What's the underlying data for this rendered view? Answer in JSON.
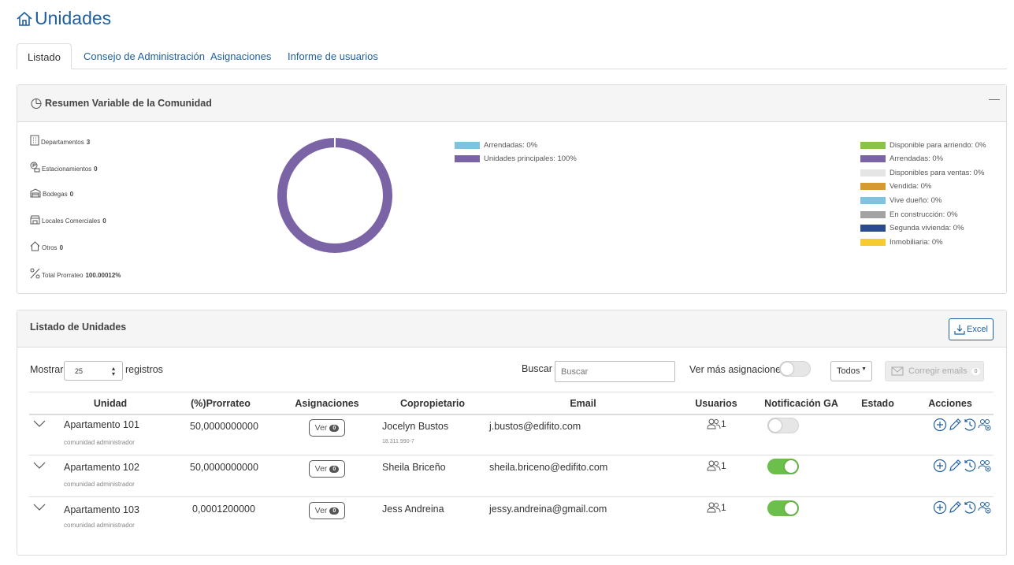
{
  "page": {
    "title": "Unidades"
  },
  "tabs": [
    "Listado",
    "Consejo de Administración",
    "Asignaciones",
    "Informe de usuarios"
  ],
  "summary": {
    "title": "Resumen Variable de la Comunidad",
    "collapse_label": "—",
    "stats": [
      {
        "label": "Departamentos",
        "value": "3",
        "icon": "building-icon"
      },
      {
        "label": "Estacionamientos",
        "value": "0",
        "icon": "parking-icon"
      },
      {
        "label": "Bodegas",
        "value": "0",
        "icon": "storage-icon"
      },
      {
        "label": "Locales Comerciales",
        "value": "0",
        "icon": "store-icon"
      },
      {
        "label": "Otros",
        "value": "0",
        "icon": "home-icon"
      },
      {
        "label": "Total Prorrateo",
        "value": "100.00012%",
        "icon": "percent-icon"
      }
    ],
    "donut": {
      "color": "#7b64a6",
      "value_percent": 100
    },
    "legend_left": [
      {
        "label": "Arrendadas: 0%",
        "color": "#7fc3e0"
      },
      {
        "label": "Unidades principales: 100%",
        "color": "#7b64a6"
      }
    ],
    "legend_right": [
      {
        "label": "Disponible para arriendo: 0%",
        "color": "#8bc34a"
      },
      {
        "label": "Arrendadas: 0%",
        "color": "#7b64a6"
      },
      {
        "label": "Disponibles para ventas: 0%",
        "color": "#e5e5e5"
      },
      {
        "label": "Vendida: 0%",
        "color": "#d69a32"
      },
      {
        "label": "Vive dueño: 0%",
        "color": "#7fc3e0"
      },
      {
        "label": "En construcción: 0%",
        "color": "#a3a3a3"
      },
      {
        "label": "Segunda vivienda: 0%",
        "color": "#2c4b8a"
      },
      {
        "label": "Inmobiliaria: 0%",
        "color": "#f5cb2f"
      }
    ]
  },
  "listing": {
    "title": "Listado de Unidades",
    "excel_label": "Excel",
    "show_label": "Mostrar",
    "page_size": "25",
    "records_label": "registros",
    "search_label": "Buscar",
    "search_placeholder": "Buscar",
    "more_assign_label": "Ver más asignaciones",
    "filter_value": "Todos",
    "fix_emails_label": "Corregir emails",
    "fix_emails_count": "0",
    "columns": [
      "Unidad",
      "(%)Prorrateo",
      "Asignaciones",
      "Copropietario",
      "Email",
      "Usuarios",
      "Notificación GA",
      "Estado",
      "Acciones"
    ],
    "rows": [
      {
        "unit": "Apartamento 101",
        "unit_sub": "comunidad administrador",
        "share": "50,0000000000",
        "assign_label": "Ver",
        "assign_count": "0",
        "owner": "Jocelyn Bustos",
        "owner_sub": "18.311.990-7",
        "email": "j.bustos@edifito.com",
        "users": "1",
        "notif": false
      },
      {
        "unit": "Apartamento 102",
        "unit_sub": "comunidad administrador",
        "share": "50,0000000000",
        "assign_label": "Ver",
        "assign_count": "0",
        "owner": "Sheila Briceño",
        "owner_sub": "",
        "email": "sheila.briceno@edifito.com",
        "users": "1",
        "notif": true
      },
      {
        "unit": "Apartamento 103",
        "unit_sub": "comunidad administrador",
        "share": "0,0001200000",
        "assign_label": "Ver",
        "assign_count": "0",
        "owner": "Jess Andreina",
        "owner_sub": "",
        "email": "jessy.andreina@gmail.com",
        "users": "1",
        "notif": true
      }
    ]
  },
  "colors": {
    "accent": "#1f5f9e",
    "toggle_on": "#6cbf4a",
    "donut": "#7b64a6"
  }
}
